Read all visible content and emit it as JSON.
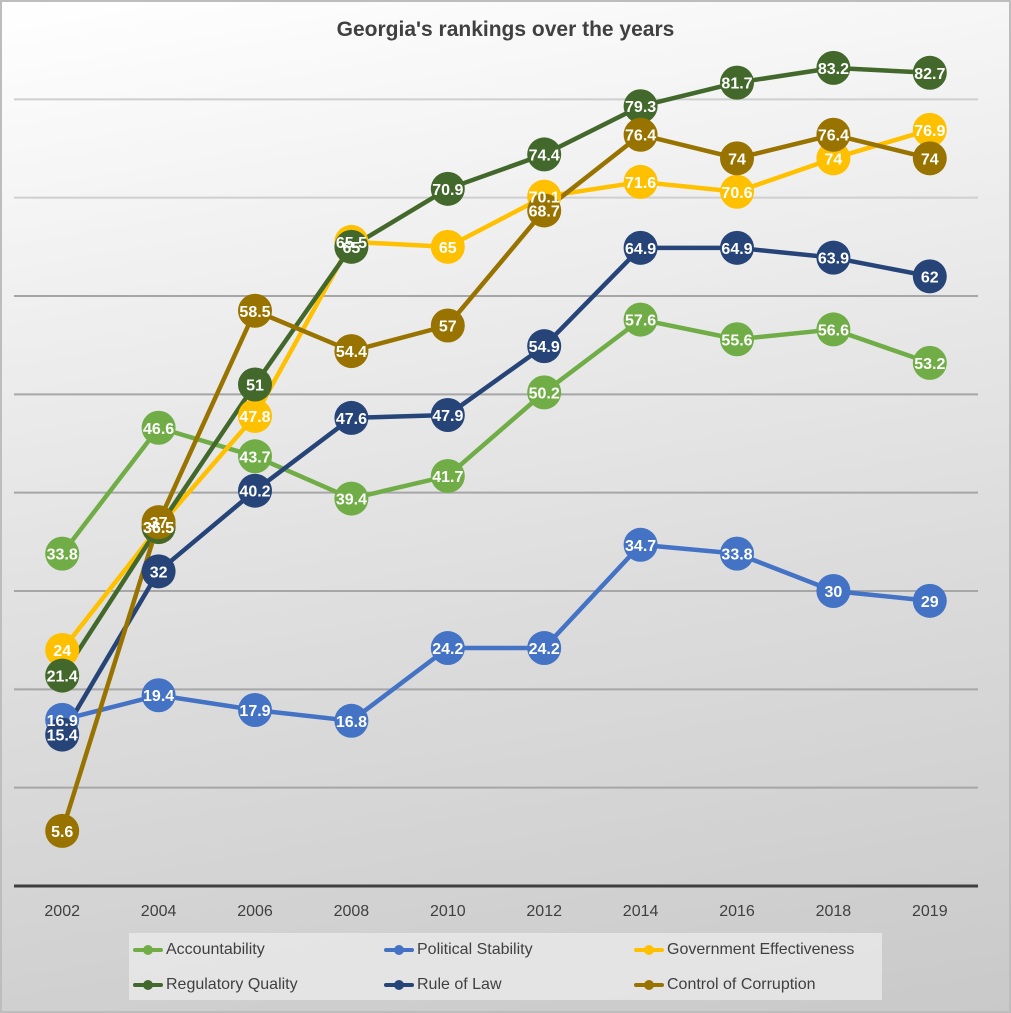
{
  "chart_data": {
    "type": "line",
    "title": "Georgia's rankings over the years",
    "xlabel": "",
    "ylabel": "",
    "categories": [
      "2002",
      "2004",
      "2006",
      "2008",
      "2010",
      "2012",
      "2014",
      "2016",
      "2018",
      "2019"
    ],
    "ylim": [
      0,
      90
    ],
    "y_gridlines": [
      10,
      20,
      30,
      40,
      50,
      60,
      70,
      80
    ],
    "y_tick_labels_visible": false,
    "grid": true,
    "legend_position": "bottom",
    "data_labels": true,
    "series": [
      {
        "name": "Accountability",
        "color": "#70ad47",
        "values": [
          33.8,
          46.6,
          43.7,
          39.4,
          41.7,
          50.2,
          57.6,
          55.6,
          56.6,
          53.2
        ]
      },
      {
        "name": "Political Stability",
        "color": "#4472c4",
        "values": [
          16.9,
          19.4,
          17.9,
          16.8,
          24.2,
          24.2,
          34.7,
          33.8,
          30,
          29
        ]
      },
      {
        "name": "Government Effectiveness",
        "color": "#ffc000",
        "values": [
          24,
          36.5,
          47.8,
          65.5,
          65,
          70.1,
          71.6,
          70.6,
          74,
          76.9
        ]
      },
      {
        "name": "Regulatory Quality",
        "color": "#43682b",
        "values": [
          21.4,
          36.5,
          51,
          65,
          70.9,
          74.4,
          79.3,
          81.7,
          83.2,
          82.7
        ]
      },
      {
        "name": "Rule of Law",
        "color": "#264478",
        "values": [
          15.4,
          32,
          40.2,
          47.6,
          47.9,
          54.9,
          64.9,
          64.9,
          63.9,
          62
        ]
      },
      {
        "name": "Control of Corruption",
        "color": "#997300",
        "values": [
          5.6,
          37,
          58.5,
          54.4,
          57,
          68.7,
          76.4,
          74,
          76.4,
          74
        ]
      }
    ]
  }
}
